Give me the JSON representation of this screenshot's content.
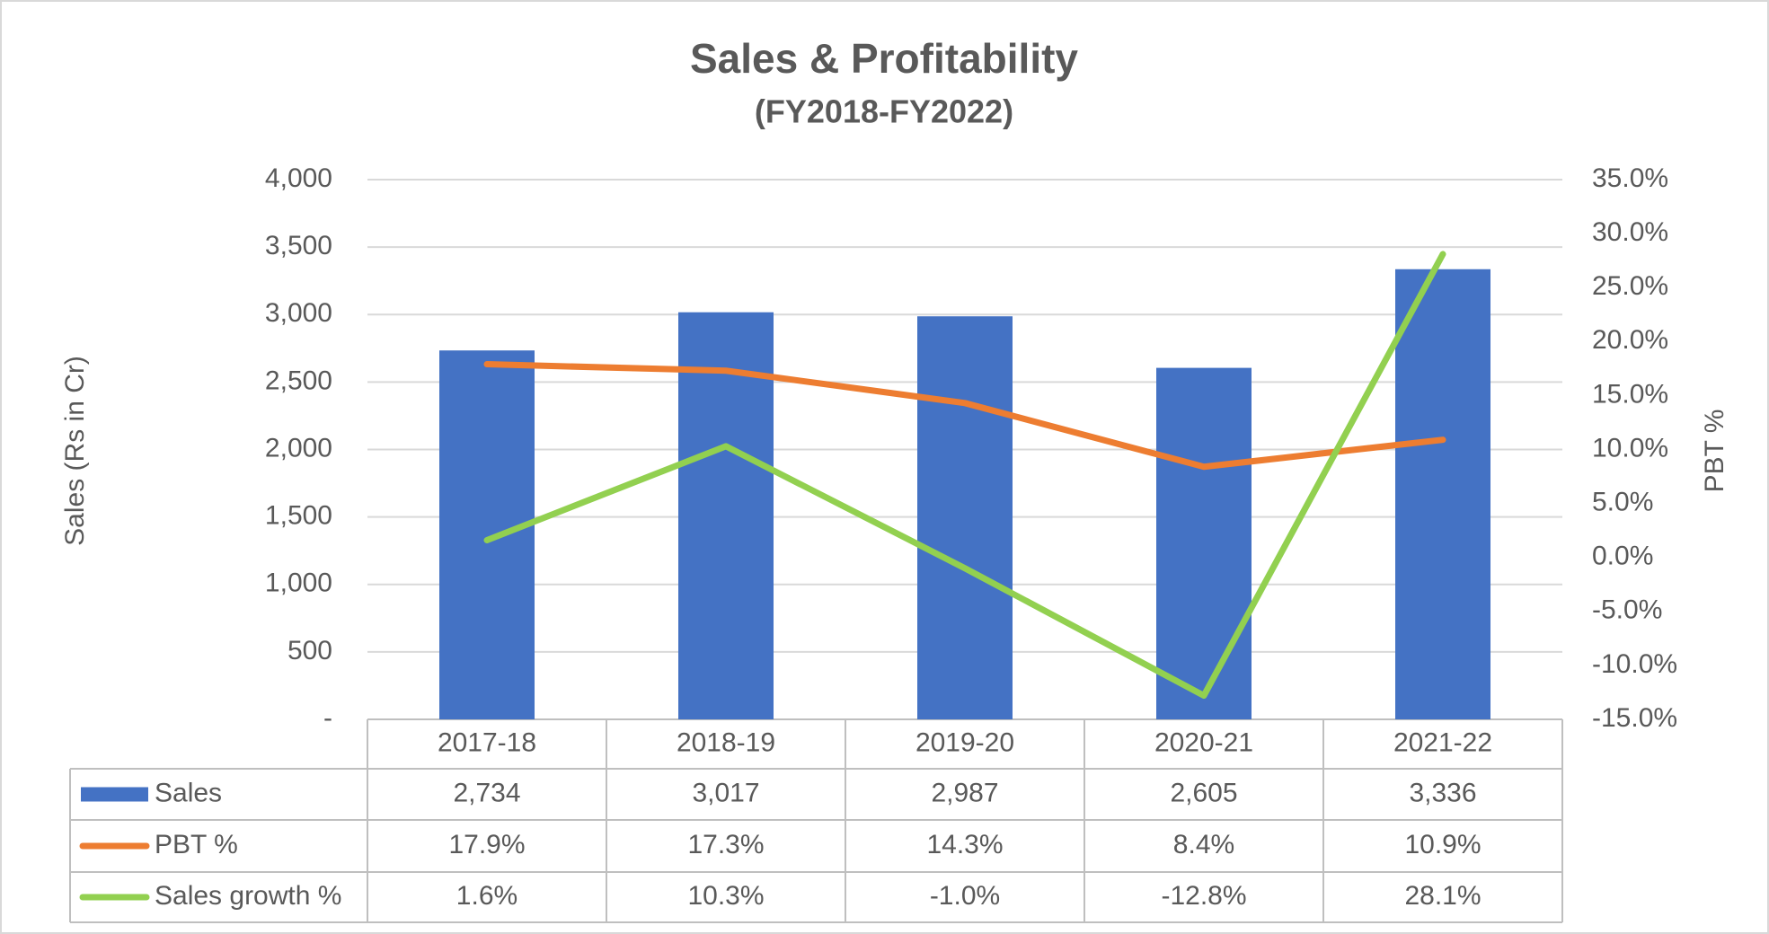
{
  "chart_data": {
    "type": "bar",
    "title": "Sales & Profitability",
    "subtitle": "(FY2018-FY2022)",
    "y_label": "Sales (Rs in Cr)",
    "y2_label": "PBT %",
    "categories": [
      "2017-18",
      "2018-19",
      "2019-20",
      "2020-21",
      "2021-22"
    ],
    "series": [
      {
        "name": "Sales",
        "type": "bar",
        "color": "#4472c4",
        "values": [
          2734,
          3017,
          2987,
          2605,
          3336
        ],
        "value_labels": [
          "2,734",
          "3,017",
          "2,987",
          "2,605",
          "3,336"
        ]
      },
      {
        "name": "PBT %",
        "type": "line",
        "axis": "y2",
        "color": "#ed7d31",
        "values": [
          17.9,
          17.3,
          14.3,
          8.4,
          10.9
        ],
        "value_labels": [
          "17.9%",
          "17.3%",
          "14.3%",
          "8.4%",
          "10.9%"
        ]
      },
      {
        "name": "Sales growth %",
        "type": "line",
        "axis": "y2",
        "color": "#92d050",
        "values": [
          1.6,
          10.3,
          -1.0,
          -12.8,
          28.1
        ],
        "value_labels": [
          "1.6%",
          "10.3%",
          "-1.0%",
          "-12.8%",
          "28.1%"
        ]
      }
    ],
    "ylim": [
      0,
      4000
    ],
    "yticks": [
      {
        "value": 0,
        "label": "-"
      },
      500,
      {
        "value": 1000,
        "label": "1,000"
      },
      {
        "value": 1500,
        "label": "1,500"
      },
      {
        "value": 2000,
        "label": "2,000"
      },
      {
        "value": 2500,
        "label": "2,500"
      },
      {
        "value": 3000,
        "label": "3,000"
      },
      {
        "value": 3500,
        "label": "3,500"
      },
      {
        "value": 4000,
        "label": "4,000"
      }
    ],
    "y2lim": [
      -15,
      35
    ],
    "y2ticks": [
      {
        "value": -15,
        "label": "-15.0%"
      },
      {
        "value": -10,
        "label": "-10.0%"
      },
      {
        "value": -5,
        "label": "-5.0%"
      },
      {
        "value": 0,
        "label": "0.0%"
      },
      {
        "value": 5,
        "label": "5.0%"
      },
      {
        "value": 10,
        "label": "10.0%"
      },
      {
        "value": 15,
        "label": "15.0%"
      },
      {
        "value": 20,
        "label": "20.0%"
      },
      {
        "value": 25,
        "label": "25.0%"
      },
      {
        "value": 30,
        "label": "30.0%"
      },
      {
        "value": 35,
        "label": "35.0%"
      }
    ],
    "grid": true
  }
}
